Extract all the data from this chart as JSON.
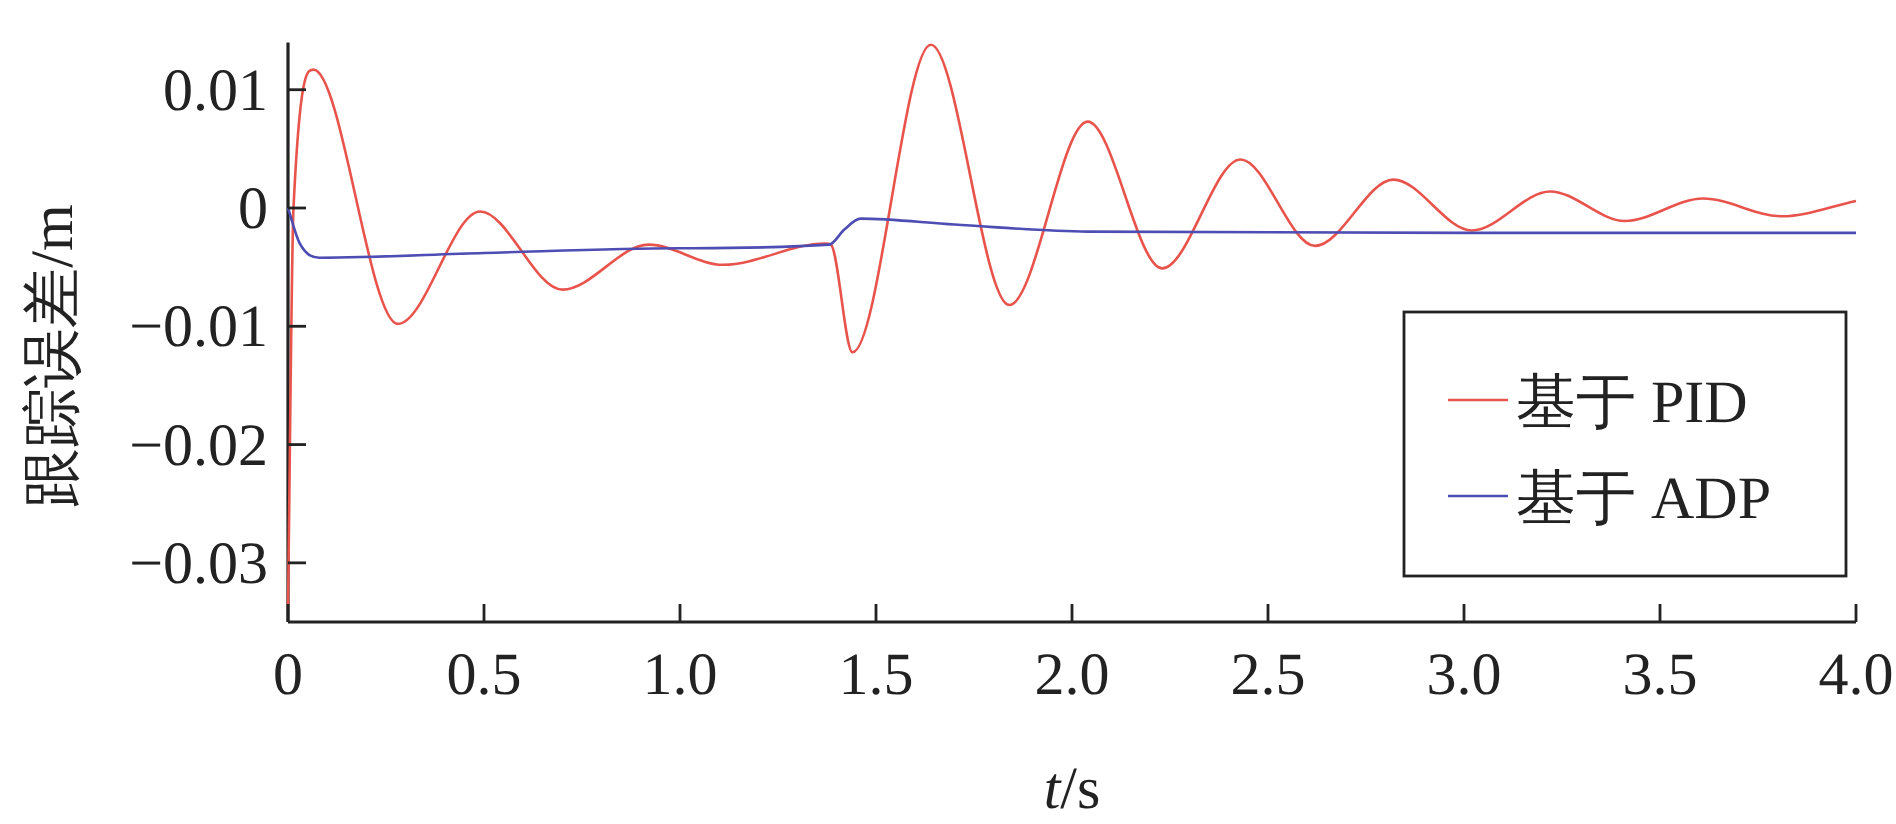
{
  "chart_data": {
    "type": "line",
    "xlabel": "*t*/s",
    "ylabel": "跟踪误差/m",
    "xlim": [
      0,
      4
    ],
    "ylim": [
      -0.035,
      0.014
    ],
    "xticks": [
      0,
      0.5,
      {
        "value": 1,
        "label": "1.0"
      },
      1.5,
      {
        "value": 2,
        "label": "2.0"
      },
      2.5,
      {
        "value": 3,
        "label": "3.0"
      },
      3.5,
      {
        "value": 4,
        "label": "4.0"
      }
    ],
    "yticks": [
      0.01,
      0,
      {
        "value": -0.01,
        "label": "−0.01"
      },
      {
        "value": -0.02,
        "label": "−0.02"
      },
      {
        "value": -0.03,
        "label": "−0.03"
      }
    ],
    "grid": false,
    "legend": "bottom right",
    "series": [
      {
        "name": "基于 PID",
        "color": "#e8544c",
        "x": [
          0,
          0.014,
          0.065,
          0.28,
          0.49,
          0.7,
          0.92,
          1.11,
          1.37,
          1.385,
          1.44,
          1.64,
          1.84,
          2.04,
          2.23,
          2.43,
          2.62,
          2.82,
          3.02,
          3.22,
          3.41,
          3.61,
          3.81,
          4.0
        ],
        "values": [
          -0.0337,
          0,
          0.0117,
          -0.0098,
          -0.0003,
          -0.0069,
          -0.0031,
          -0.0048,
          -0.003,
          -0.0031,
          -0.0122,
          0.0138,
          -0.0082,
          0.0073,
          -0.0051,
          0.0041,
          -0.0032,
          0.0024,
          -0.0019,
          0.0014,
          -0.0011,
          0.0008,
          -0.0007,
          0.0006
        ]
      },
      {
        "name": "基于 ADP",
        "color": "#4d4db3",
        "x": [
          0,
          0.03,
          0.08,
          0.5,
          1.0,
          1.38,
          1.42,
          1.46,
          1.7,
          2.04,
          3.0,
          4.0
        ],
        "values": [
          0,
          -0.003,
          -0.0042,
          -0.0038,
          -0.0034,
          -0.0031,
          -0.0018,
          -0.0009,
          -0.0014,
          -0.002,
          -0.0021,
          -0.0021
        ]
      }
    ]
  }
}
